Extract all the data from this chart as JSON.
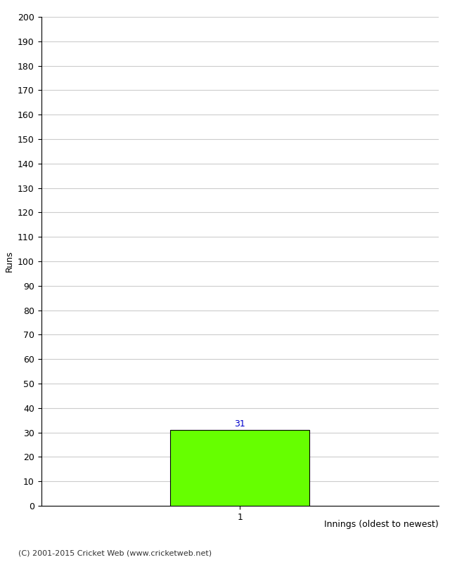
{
  "xlabel": "Innings (oldest to newest)",
  "ylabel": "Runs",
  "bar_values": [
    31
  ],
  "bar_positions": [
    1
  ],
  "bar_color": "#66ff00",
  "bar_edgecolor": "#000000",
  "ylim": [
    0,
    200
  ],
  "ytick_step": 10,
  "xlim": [
    0,
    2
  ],
  "xtick_labels": [
    "1"
  ],
  "xtick_positions": [
    1
  ],
  "annotation_color": "#0000cc",
  "annotation_fontsize": 9,
  "footer_text": "(C) 2001-2015 Cricket Web (www.cricketweb.net)",
  "background_color": "#ffffff",
  "grid_color": "#cccccc",
  "bar_width": 0.7,
  "label_fontsize": 9,
  "tick_fontsize": 9,
  "footer_fontsize": 8
}
